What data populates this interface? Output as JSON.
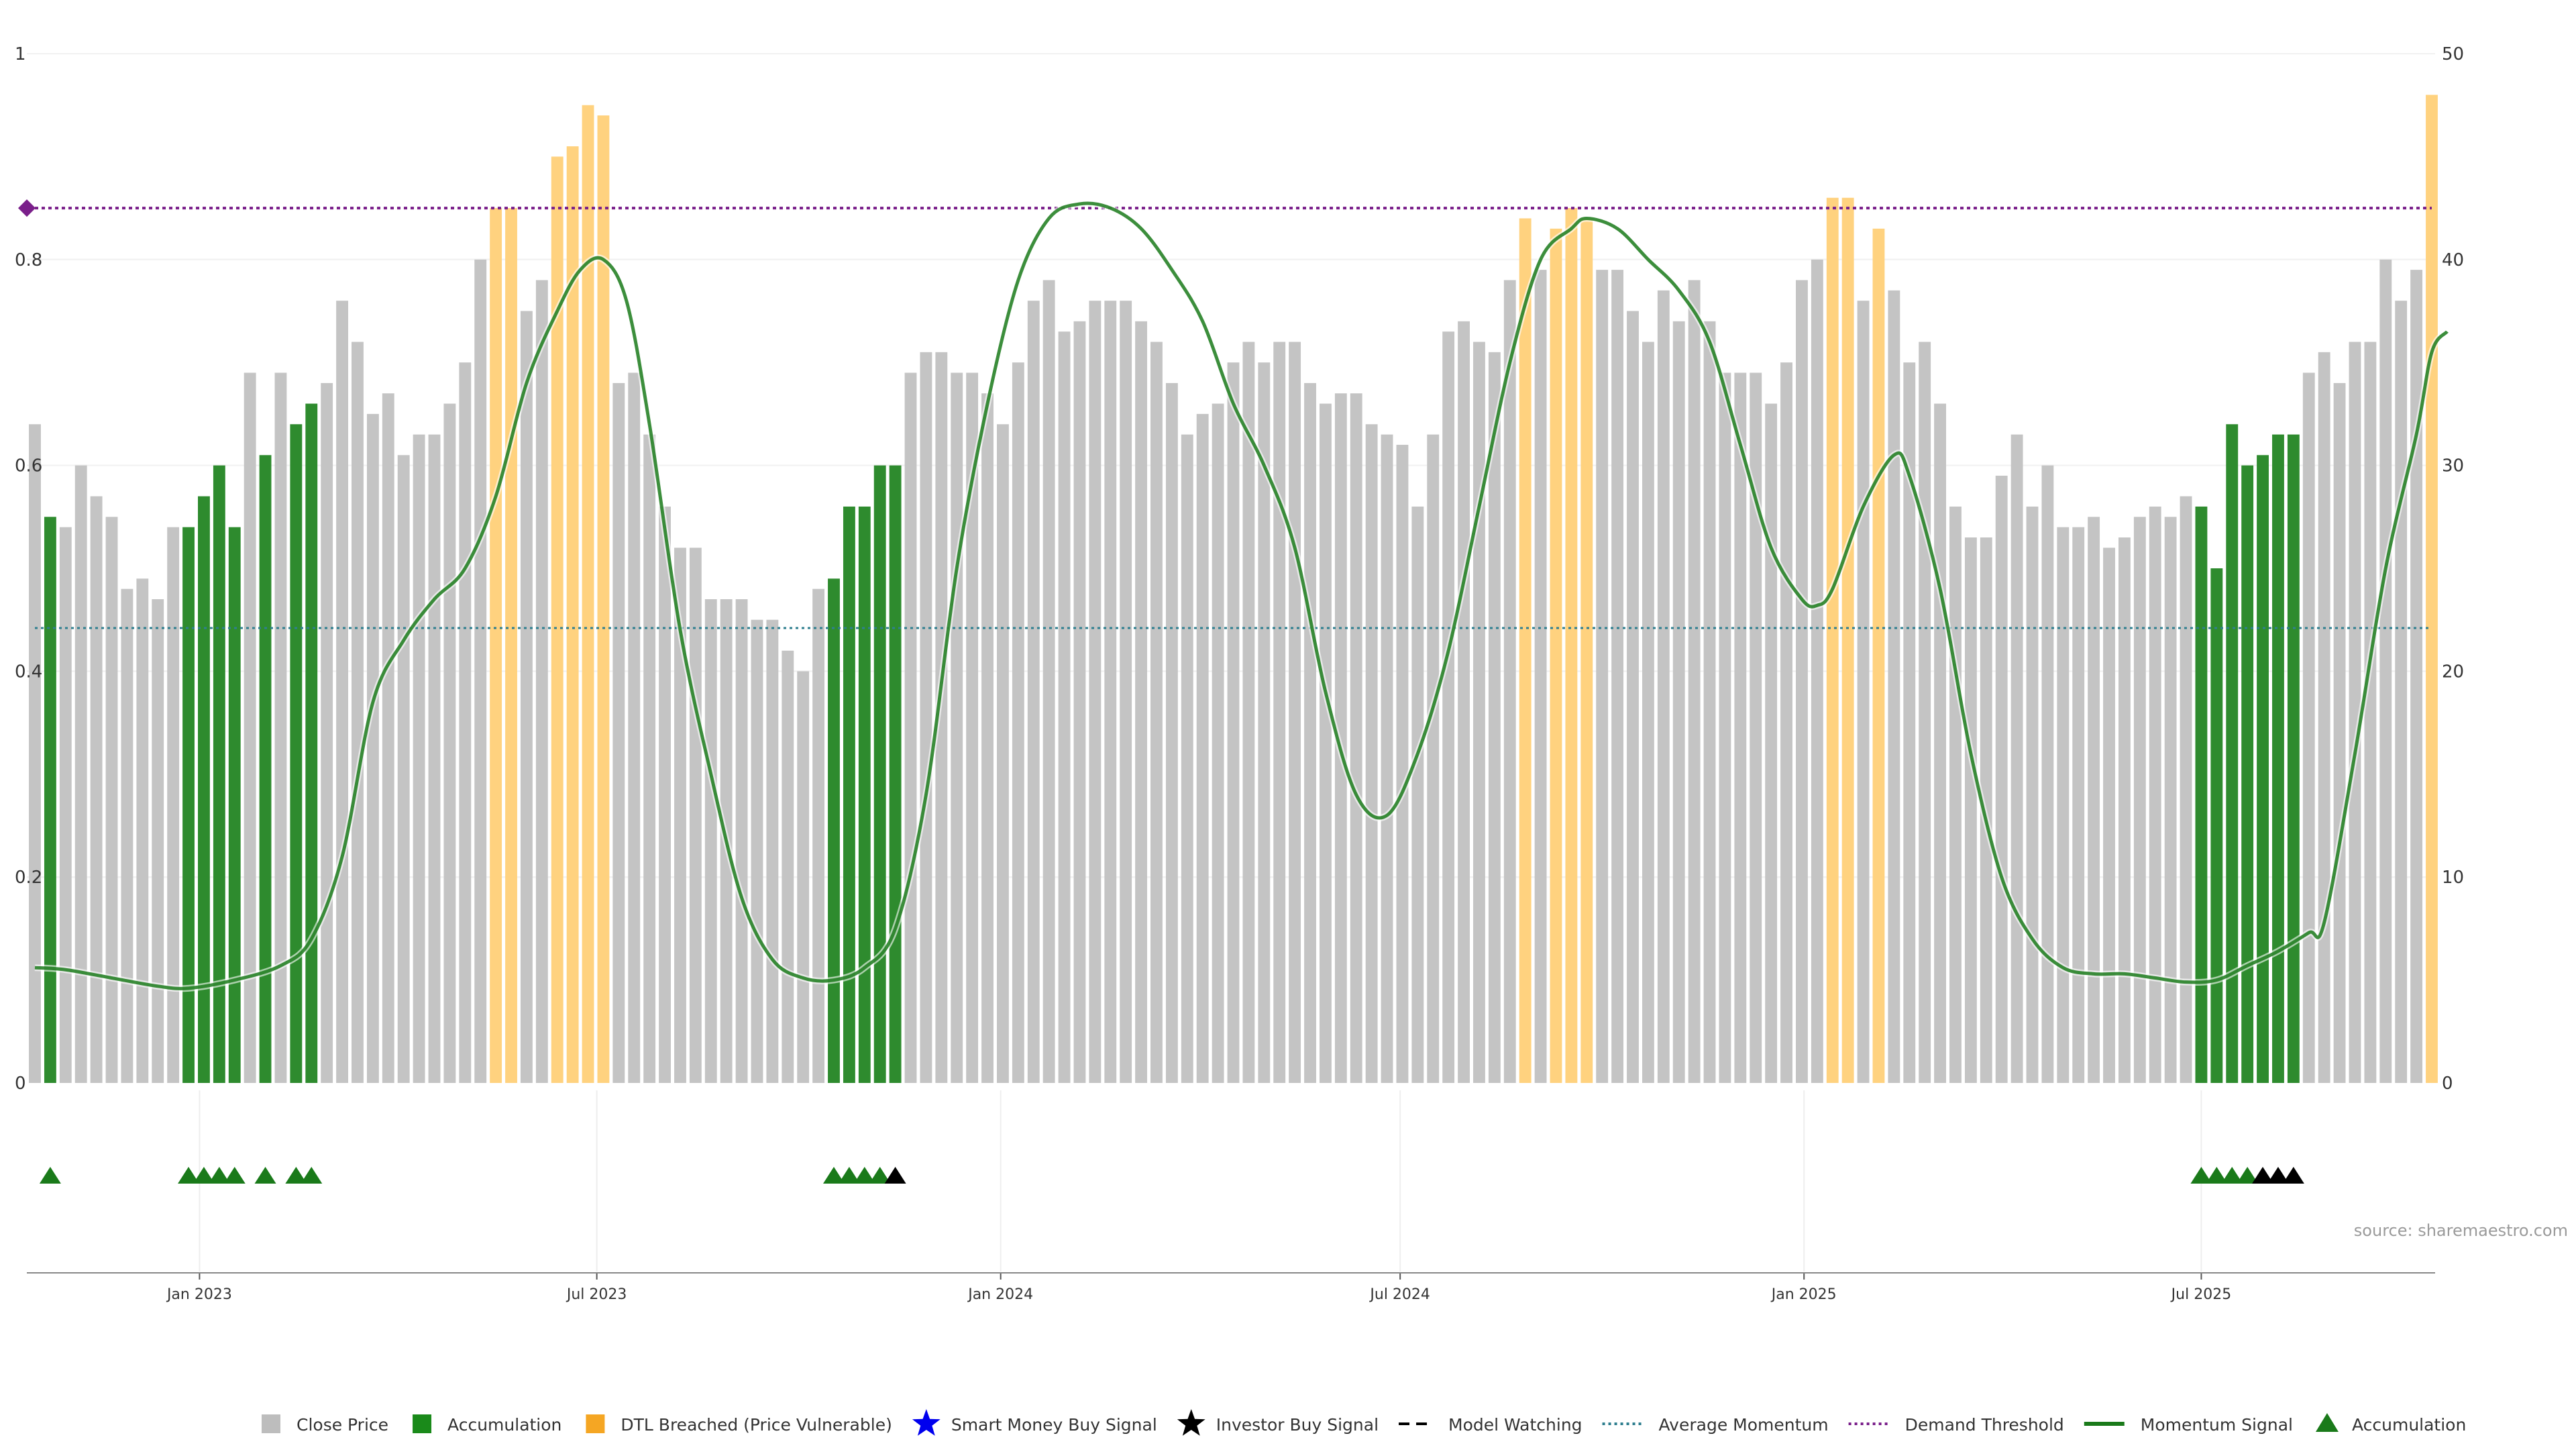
{
  "source_text": "source: sharemaestro.com",
  "legend": [
    {
      "label": "Close Price",
      "kind": "square",
      "color": "#bdbdbd",
      "icon": "square-icon"
    },
    {
      "label": "Accumulation",
      "kind": "square",
      "color": "#1a8a1a",
      "icon": "square-icon"
    },
    {
      "label": "DTL Breached (Price Vulnerable)",
      "kind": "square",
      "color": "#f5a623",
      "icon": "square-icon"
    },
    {
      "label": "Smart Money Buy Signal",
      "kind": "star",
      "color": "#0000ee",
      "icon": "star-icon"
    },
    {
      "label": "Investor Buy Signal",
      "kind": "star",
      "color": "#000000",
      "icon": "star-icon"
    },
    {
      "label": "Model Watching",
      "kind": "dash",
      "color": "#000000",
      "icon": "dashed-line-icon"
    },
    {
      "label": "Average Momentum",
      "kind": "dot",
      "color": "#2f7f8f",
      "icon": "dotted-line-icon"
    },
    {
      "label": "Demand Threshold",
      "kind": "dot",
      "color": "#7a1f8a",
      "icon": "dotted-line-icon"
    },
    {
      "label": "Momentum Signal",
      "kind": "line",
      "color": "#1a7a1a",
      "icon": "line-icon"
    },
    {
      "label": "Accumulation",
      "kind": "triangle",
      "color": "#1a7a1a",
      "icon": "triangle-icon"
    }
  ],
  "chart_data": {
    "type": "bar",
    "title": "",
    "xlabel": "",
    "ylabel": "",
    "x_start": "2022-10-18",
    "x_ticks": [
      "Jan 2023",
      "Jul 2023",
      "Jan 2024",
      "Jul 2024",
      "Jan 2025",
      "Jul 2025"
    ],
    "y_left_ticks": [
      "0",
      "0.2",
      "0.4",
      "0.6",
      "0.8",
      "1"
    ],
    "y_right_ticks": [
      "0",
      "10",
      "20",
      "30",
      "40",
      "50"
    ],
    "y_left_range": [
      0,
      1
    ],
    "y_right_range": [
      0,
      50
    ],
    "colors": {
      "neutral": "#c4c4c4",
      "accumulation": "#2e8b2e",
      "dtl": "#ffd27f",
      "momentum": "#1a7a1a",
      "avg_momentum": "#2f7f8f",
      "demand": "#7a1f8a",
      "triangle_green": "#1a7a1a",
      "triangle_black": "#000000"
    },
    "bars": [
      [
        0.64,
        "N"
      ],
      [
        0.55,
        "A"
      ],
      [
        0.54,
        "N"
      ],
      [
        0.6,
        "N"
      ],
      [
        0.57,
        "N"
      ],
      [
        0.55,
        "N"
      ],
      [
        0.48,
        "N"
      ],
      [
        0.49,
        "N"
      ],
      [
        0.47,
        "N"
      ],
      [
        0.54,
        "N"
      ],
      [
        0.54,
        "A"
      ],
      [
        0.57,
        "A"
      ],
      [
        0.6,
        "A"
      ],
      [
        0.54,
        "A"
      ],
      [
        0.69,
        "N"
      ],
      [
        0.61,
        "A"
      ],
      [
        0.69,
        "N"
      ],
      [
        0.64,
        "A"
      ],
      [
        0.66,
        "A"
      ],
      [
        0.68,
        "N"
      ],
      [
        0.76,
        "N"
      ],
      [
        0.72,
        "N"
      ],
      [
        0.65,
        "N"
      ],
      [
        0.67,
        "N"
      ],
      [
        0.61,
        "N"
      ],
      [
        0.63,
        "N"
      ],
      [
        0.63,
        "N"
      ],
      [
        0.66,
        "N"
      ],
      [
        0.7,
        "N"
      ],
      [
        0.8,
        "N"
      ],
      [
        0.85,
        "D"
      ],
      [
        0.85,
        "D"
      ],
      [
        0.75,
        "N"
      ],
      [
        0.78,
        "N"
      ],
      [
        0.9,
        "D"
      ],
      [
        0.91,
        "D"
      ],
      [
        0.95,
        "D"
      ],
      [
        0.94,
        "D"
      ],
      [
        0.68,
        "N"
      ],
      [
        0.69,
        "N"
      ],
      [
        0.63,
        "N"
      ],
      [
        0.56,
        "N"
      ],
      [
        0.52,
        "N"
      ],
      [
        0.52,
        "N"
      ],
      [
        0.47,
        "N"
      ],
      [
        0.47,
        "N"
      ],
      [
        0.47,
        "N"
      ],
      [
        0.45,
        "N"
      ],
      [
        0.45,
        "N"
      ],
      [
        0.42,
        "N"
      ],
      [
        0.4,
        "N"
      ],
      [
        0.48,
        "N"
      ],
      [
        0.49,
        "A"
      ],
      [
        0.56,
        "A"
      ],
      [
        0.56,
        "A"
      ],
      [
        0.6,
        "A"
      ],
      [
        0.6,
        "A"
      ],
      [
        0.69,
        "N"
      ],
      [
        0.71,
        "N"
      ],
      [
        0.71,
        "N"
      ],
      [
        0.69,
        "N"
      ],
      [
        0.69,
        "N"
      ],
      [
        0.67,
        "N"
      ],
      [
        0.64,
        "N"
      ],
      [
        0.7,
        "N"
      ],
      [
        0.76,
        "N"
      ],
      [
        0.78,
        "N"
      ],
      [
        0.73,
        "N"
      ],
      [
        0.74,
        "N"
      ],
      [
        0.76,
        "N"
      ],
      [
        0.76,
        "N"
      ],
      [
        0.76,
        "N"
      ],
      [
        0.74,
        "N"
      ],
      [
        0.72,
        "N"
      ],
      [
        0.68,
        "N"
      ],
      [
        0.63,
        "N"
      ],
      [
        0.65,
        "N"
      ],
      [
        0.66,
        "N"
      ],
      [
        0.7,
        "N"
      ],
      [
        0.72,
        "N"
      ],
      [
        0.7,
        "N"
      ],
      [
        0.72,
        "N"
      ],
      [
        0.72,
        "N"
      ],
      [
        0.68,
        "N"
      ],
      [
        0.66,
        "N"
      ],
      [
        0.67,
        "N"
      ],
      [
        0.67,
        "N"
      ],
      [
        0.64,
        "N"
      ],
      [
        0.63,
        "N"
      ],
      [
        0.62,
        "N"
      ],
      [
        0.56,
        "N"
      ],
      [
        0.63,
        "N"
      ],
      [
        0.73,
        "N"
      ],
      [
        0.74,
        "N"
      ],
      [
        0.72,
        "N"
      ],
      [
        0.71,
        "N"
      ],
      [
        0.78,
        "N"
      ],
      [
        0.84,
        "D"
      ],
      [
        0.79,
        "N"
      ],
      [
        0.83,
        "D"
      ],
      [
        0.85,
        "D"
      ],
      [
        0.84,
        "D"
      ],
      [
        0.79,
        "N"
      ],
      [
        0.79,
        "N"
      ],
      [
        0.75,
        "N"
      ],
      [
        0.72,
        "N"
      ],
      [
        0.77,
        "N"
      ],
      [
        0.74,
        "N"
      ],
      [
        0.78,
        "N"
      ],
      [
        0.74,
        "N"
      ],
      [
        0.69,
        "N"
      ],
      [
        0.69,
        "N"
      ],
      [
        0.69,
        "N"
      ],
      [
        0.66,
        "N"
      ],
      [
        0.7,
        "N"
      ],
      [
        0.78,
        "N"
      ],
      [
        0.8,
        "N"
      ],
      [
        0.86,
        "D"
      ],
      [
        0.86,
        "D"
      ],
      [
        0.76,
        "N"
      ],
      [
        0.83,
        "D"
      ],
      [
        0.77,
        "N"
      ],
      [
        0.7,
        "N"
      ],
      [
        0.72,
        "N"
      ],
      [
        0.66,
        "N"
      ],
      [
        0.56,
        "N"
      ],
      [
        0.53,
        "N"
      ],
      [
        0.53,
        "N"
      ],
      [
        0.59,
        "N"
      ],
      [
        0.63,
        "N"
      ],
      [
        0.56,
        "N"
      ],
      [
        0.6,
        "N"
      ],
      [
        0.54,
        "N"
      ],
      [
        0.54,
        "N"
      ],
      [
        0.55,
        "N"
      ],
      [
        0.52,
        "N"
      ],
      [
        0.53,
        "N"
      ],
      [
        0.55,
        "N"
      ],
      [
        0.56,
        "N"
      ],
      [
        0.55,
        "N"
      ],
      [
        0.57,
        "N"
      ],
      [
        0.56,
        "A"
      ],
      [
        0.5,
        "A"
      ],
      [
        0.64,
        "A"
      ],
      [
        0.6,
        "A"
      ],
      [
        0.61,
        "A"
      ],
      [
        0.63,
        "A"
      ],
      [
        0.63,
        "A"
      ],
      [
        0.69,
        "N"
      ],
      [
        0.71,
        "N"
      ],
      [
        0.68,
        "N"
      ],
      [
        0.72,
        "N"
      ],
      [
        0.72,
        "N"
      ],
      [
        0.8,
        "N"
      ],
      [
        0.76,
        "N"
      ],
      [
        0.79,
        "N"
      ],
      [
        0.96,
        "D"
      ]
    ],
    "momentum": [
      [
        0,
        5.6
      ],
      [
        2,
        5.5
      ],
      [
        5,
        5.1
      ],
      [
        8,
        4.7
      ],
      [
        10,
        4.6
      ],
      [
        13,
        5.0
      ],
      [
        16,
        5.7
      ],
      [
        18,
        7.0
      ],
      [
        20,
        11.0
      ],
      [
        22,
        18.5
      ],
      [
        24,
        21.5
      ],
      [
        26,
        23.5
      ],
      [
        28,
        25.0
      ],
      [
        30,
        28.5
      ],
      [
        32,
        34.0
      ],
      [
        34,
        37.5
      ],
      [
        35.5,
        39.5
      ],
      [
        37,
        40.0
      ],
      [
        38.5,
        38.0
      ],
      [
        40,
        32.0
      ],
      [
        42,
        22.0
      ],
      [
        44,
        15.0
      ],
      [
        46,
        9.0
      ],
      [
        48,
        6.0
      ],
      [
        50,
        5.1
      ],
      [
        52,
        5.0
      ],
      [
        54,
        5.6
      ],
      [
        56,
        7.5
      ],
      [
        58,
        14.0
      ],
      [
        60,
        25.0
      ],
      [
        62,
        33.0
      ],
      [
        64,
        39.0
      ],
      [
        66,
        42.0
      ],
      [
        68,
        42.7
      ],
      [
        70,
        42.5
      ],
      [
        72,
        41.5
      ],
      [
        74,
        39.5
      ],
      [
        76,
        37.0
      ],
      [
        78,
        33.0
      ],
      [
        80,
        30.0
      ],
      [
        82,
        26.0
      ],
      [
        84,
        19.0
      ],
      [
        86,
        14.0
      ],
      [
        88,
        13.0
      ],
      [
        90,
        16.0
      ],
      [
        92,
        21.0
      ],
      [
        94,
        28.0
      ],
      [
        96,
        35.0
      ],
      [
        98,
        40.0
      ],
      [
        100,
        41.5
      ],
      [
        101,
        42.0
      ],
      [
        103,
        41.5
      ],
      [
        105,
        40.0
      ],
      [
        107,
        38.5
      ],
      [
        109,
        36.0
      ],
      [
        111,
        31.0
      ],
      [
        113,
        26.0
      ],
      [
        115,
        23.5
      ],
      [
        116,
        23.2
      ],
      [
        117,
        24.0
      ],
      [
        119,
        28.0
      ],
      [
        121,
        30.5
      ],
      [
        122,
        29.5
      ],
      [
        124,
        24.0
      ],
      [
        126,
        16.0
      ],
      [
        128,
        10.0
      ],
      [
        130,
        7.0
      ],
      [
        132,
        5.6
      ],
      [
        134,
        5.3
      ],
      [
        136,
        5.3
      ],
      [
        138,
        5.1
      ],
      [
        140,
        4.9
      ],
      [
        142,
        5.0
      ],
      [
        144,
        5.7
      ],
      [
        146,
        6.4
      ],
      [
        148,
        7.3
      ],
      [
        149,
        7.8
      ],
      [
        151,
        16.0
      ],
      [
        153,
        25.0
      ],
      [
        155,
        31.5
      ],
      [
        156,
        35.5
      ],
      [
        157,
        36.5
      ]
    ],
    "average_momentum": 22.1,
    "demand_threshold": 42.5,
    "triangles": [
      [
        1,
        "green"
      ],
      [
        10,
        "green"
      ],
      [
        11,
        "green"
      ],
      [
        12,
        "green"
      ],
      [
        13,
        "green"
      ],
      [
        15,
        "green"
      ],
      [
        17,
        "green"
      ],
      [
        18,
        "green"
      ],
      [
        52,
        "green"
      ],
      [
        53,
        "green"
      ],
      [
        54,
        "green"
      ],
      [
        55,
        "green"
      ],
      [
        56,
        "black"
      ],
      [
        141,
        "green"
      ],
      [
        142,
        "green"
      ],
      [
        143,
        "green"
      ],
      [
        144,
        "green"
      ],
      [
        145,
        "black"
      ],
      [
        146,
        "black"
      ],
      [
        147,
        "black"
      ]
    ]
  }
}
